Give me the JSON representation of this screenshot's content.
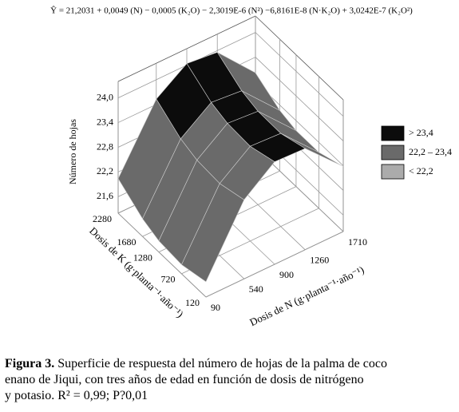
{
  "equation": "Ŷ = 21,2031 + 0,0049 (N) − 0,0005 (K₂O) − 2,3019E-6 (N²) −6,8161E-8 (N·K₂O) + 3,0242E-7 (K₂O²)",
  "chart_data": {
    "type": "surface",
    "x_label": "Dosis de N (g·planta⁻¹·año⁻¹)",
    "y_label": "Dosis de K (g·planta⁻¹·año⁻¹)",
    "z_label": "Número de hojas",
    "x": [
      90,
      540,
      900,
      1260,
      1710
    ],
    "y": [
      120,
      720,
      1280,
      1680,
      2280
    ],
    "z": [
      [
        21.57,
        23.12,
        23.69,
        23.66,
        22.78
      ],
      [
        21.42,
        22.95,
        23.5,
        23.46,
        22.56
      ],
      [
        21.47,
        22.99,
        23.53,
        23.47,
        22.56
      ],
      [
        21.63,
        23.13,
        23.66,
        23.59,
        22.67
      ],
      [
        22.04,
        23.53,
        24.04,
        23.96,
        23.02
      ]
    ],
    "xlim": [
      90,
      1710
    ],
    "ylim": [
      120,
      2280
    ],
    "zlim": [
      21.2,
      24.4
    ],
    "xticks": [
      90,
      540,
      900,
      1260,
      1710
    ],
    "yticks": [
      120,
      720,
      1280,
      1680,
      2280
    ],
    "zticks": [
      {
        "value": 21.6,
        "label": "21,6"
      },
      {
        "value": 22.2,
        "label": "22,2"
      },
      {
        "value": 22.8,
        "label": "22,8"
      },
      {
        "value": 23.4,
        "label": "23,4"
      },
      {
        "value": 24.0,
        "label": "24,0"
      }
    ],
    "levels": [
      22.2,
      23.4
    ],
    "legend": [
      {
        "label": "> 23,4",
        "color": "#0c0c0c"
      },
      {
        "label": "22,2 – 23,4",
        "color": "#6a6a6a"
      },
      {
        "label": "< 22,2",
        "color": "#ababab"
      }
    ],
    "grid": true
  },
  "caption": {
    "label": "Figura 3.",
    "lines": [
      " Superficie de respuesta del número de hojas de la palma de coco",
      "enano de Jiqui, con tres años de edad en función de dosis de nitrógeno",
      " y potasio. R² = 0,99;  P?0,01"
    ]
  }
}
